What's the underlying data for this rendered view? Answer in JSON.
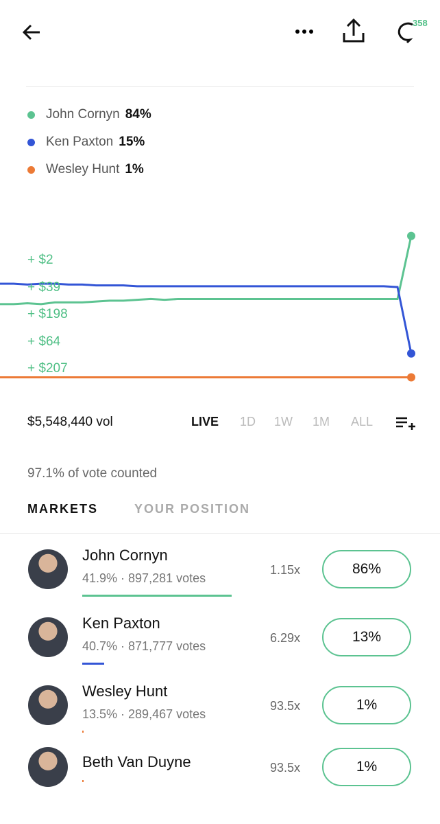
{
  "header": {
    "comment_count": "358"
  },
  "chart": {
    "type": "line",
    "ylim": [
      0,
      100
    ],
    "series": [
      {
        "name": "John Cornyn",
        "legend_value": "84%",
        "color": "#5cc391",
        "values": [
          44,
          44,
          44.5,
          44,
          45,
          45,
          45,
          45.5,
          46,
          46,
          46.5,
          47,
          46.5,
          47,
          47,
          47,
          47,
          47,
          47,
          47,
          47,
          47,
          47,
          47,
          47,
          47,
          47,
          47,
          47,
          47,
          84
        ]
      },
      {
        "name": "Ken Paxton",
        "legend_value": "15%",
        "color": "#3355d6",
        "values": [
          56,
          56,
          55.5,
          56,
          56,
          55.5,
          55.5,
          55,
          55,
          55,
          54.5,
          54.5,
          54.5,
          54.5,
          54.5,
          54.5,
          54.5,
          54.5,
          54.5,
          54.5,
          54.5,
          54.5,
          54.5,
          54.5,
          54.5,
          54.5,
          54.5,
          54.5,
          54.5,
          54,
          15
        ]
      },
      {
        "name": "Wesley Hunt",
        "legend_value": "1%",
        "color": "#ec7a36",
        "values": [
          1,
          1,
          1,
          1,
          1,
          1,
          1,
          1,
          1,
          1,
          1,
          1,
          1,
          1,
          1,
          1,
          1,
          1,
          1,
          1,
          1,
          1,
          1,
          1,
          1,
          1,
          1,
          1,
          1,
          1,
          1
        ]
      }
    ]
  },
  "trades": [
    "+ $2",
    "+ $39",
    "+ $198",
    "+ $64",
    "+ $207"
  ],
  "volume": "$5,548,440 vol",
  "ranges": [
    "LIVE",
    "1D",
    "1W",
    "1M",
    "ALL"
  ],
  "counted": "97.1% of vote counted",
  "tabs": [
    "MARKETS",
    "YOUR POSITION"
  ],
  "markets": [
    {
      "name": "John Cornyn",
      "stats": "41.9% · 897,281 votes",
      "payout": "1.15x",
      "price": "86%"
    },
    {
      "name": "Ken Paxton",
      "stats": "40.7% · 871,777 votes",
      "payout": "6.29x",
      "price": "13%"
    },
    {
      "name": "Wesley Hunt",
      "stats": "13.5% · 289,467 votes",
      "payout": "93.5x",
      "price": "1%"
    },
    {
      "name": "Beth Van Duyne",
      "payout": "93.5x",
      "price": "1%"
    }
  ]
}
